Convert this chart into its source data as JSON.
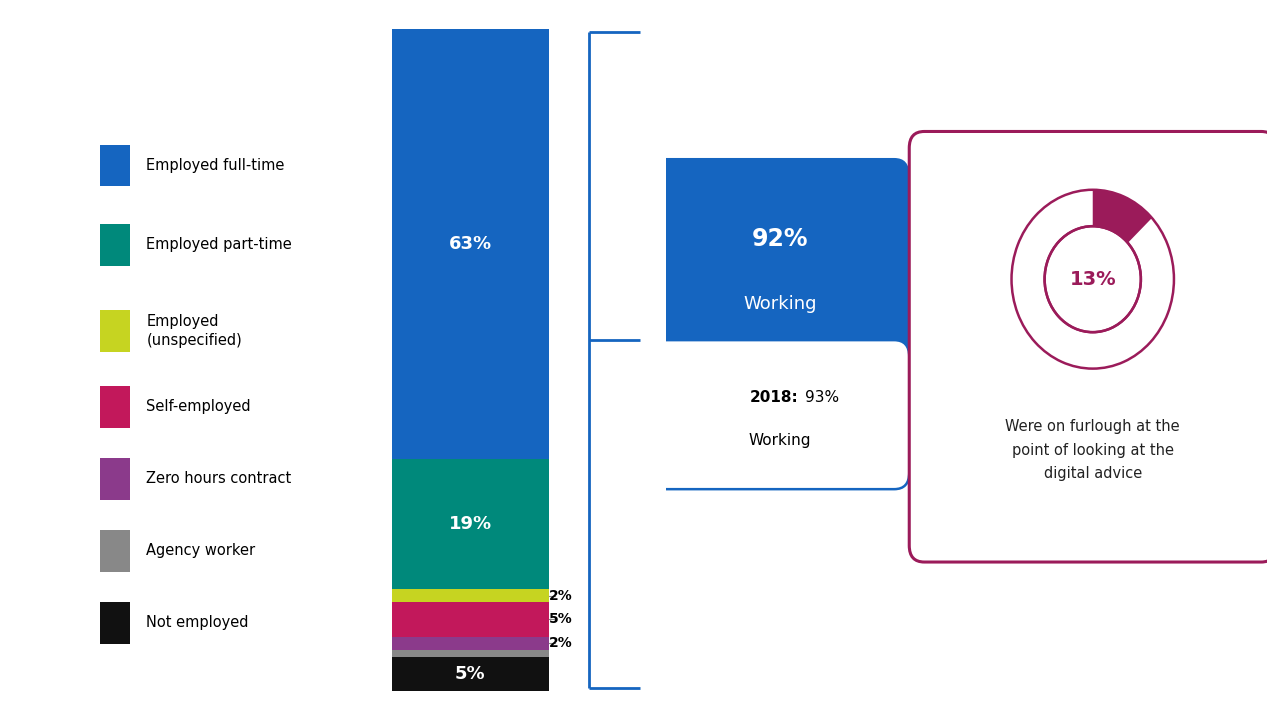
{
  "bar_values": [
    63,
    19,
    2,
    5,
    2,
    1,
    5
  ],
  "bar_colors": [
    "#1565C0",
    "#00897B",
    "#C6D421",
    "#C2185B",
    "#8B3A8B",
    "#888888",
    "#111111"
  ],
  "legend_labels": [
    "Employed full-time",
    "Employed part-time",
    "Employed\n(unspecified)",
    "Self-employed",
    "Zero hours contract",
    "Agency worker",
    "Not employed"
  ],
  "blue_color": "#1565C0",
  "furlough_border_color": "#9B1B5A",
  "bracket_color": "#1565C0",
  "background_color": "#FFFFFF",
  "agency_value": 1
}
